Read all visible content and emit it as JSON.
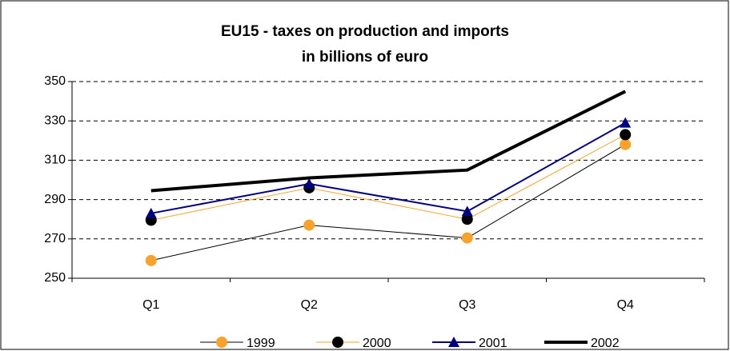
{
  "chart_data": {
    "type": "line",
    "title": "EU15 - taxes on production and imports",
    "subtitle": "in billions of euro",
    "categories": [
      "Q1",
      "Q2",
      "Q3",
      "Q4"
    ],
    "series": [
      {
        "name": "1999",
        "color": "#000000",
        "marker_color": "#f9a22a",
        "marker": "circle",
        "line_width": 1,
        "values": [
          259,
          277,
          270.5,
          318
        ]
      },
      {
        "name": "2000",
        "color": "#f9a22a",
        "marker_color": "#000000",
        "marker": "circle",
        "line_width": 1,
        "values": [
          279.5,
          296,
          280,
          323
        ]
      },
      {
        "name": "2001",
        "color": "#000080",
        "marker_color": "#000080",
        "marker": "triangle",
        "line_width": 2,
        "values": [
          283,
          298,
          284,
          329
        ]
      },
      {
        "name": "2002",
        "color": "#000000",
        "marker_color": "#000000",
        "marker": null,
        "line_width": 4,
        "values": [
          294.5,
          301,
          305,
          345
        ]
      }
    ],
    "ylim": [
      250,
      350
    ],
    "yticks": [
      250,
      270,
      290,
      310,
      330,
      350
    ],
    "grid": true,
    "legend": "bottom"
  }
}
